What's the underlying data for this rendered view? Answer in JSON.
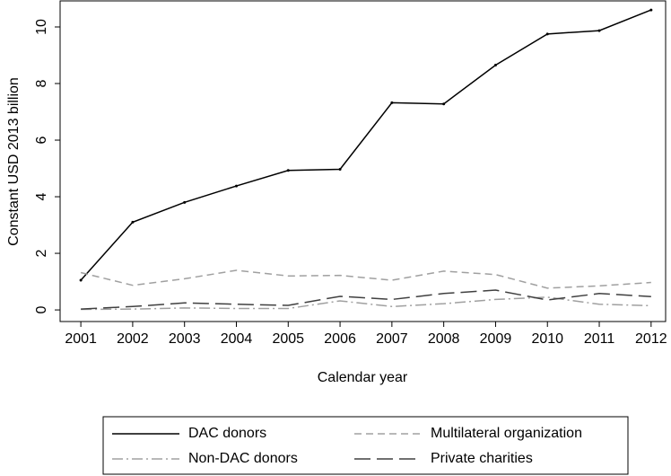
{
  "chart_data": {
    "type": "line",
    "x_label": "Calendar year",
    "y_label": "Constant USD 2013 billion",
    "x": [
      2001,
      2002,
      2003,
      2004,
      2005,
      2006,
      2007,
      2008,
      2009,
      2010,
      2011,
      2012
    ],
    "series": [
      {
        "name": "DAC donors",
        "color": "#000000",
        "values": [
          1.05,
          3.1,
          3.8,
          4.38,
          4.93,
          4.97,
          7.32,
          7.28,
          8.65,
          9.75,
          9.87,
          10.6
        ]
      },
      {
        "name": "Multilateral organization",
        "color": "#a0a0a0",
        "values": [
          1.32,
          0.87,
          1.1,
          1.4,
          1.2,
          1.22,
          1.05,
          1.37,
          1.25,
          0.77,
          0.85,
          0.97
        ]
      },
      {
        "name": "Non-DAC donors",
        "color": "#a0a0a0",
        "values": [
          0.02,
          0.03,
          0.07,
          0.05,
          0.05,
          0.32,
          0.12,
          0.22,
          0.37,
          0.45,
          0.2,
          0.15
        ]
      },
      {
        "name": "Private charities",
        "color": "#404040",
        "values": [
          0.03,
          0.12,
          0.25,
          0.2,
          0.16,
          0.48,
          0.37,
          0.58,
          0.7,
          0.35,
          0.58,
          0.47
        ]
      }
    ],
    "xlim": [
      2000.6,
      2012.28
    ],
    "xticks": [
      2001,
      2002,
      2003,
      2004,
      2005,
      2006,
      2007,
      2008,
      2009,
      2010,
      2011,
      2012
    ],
    "ylim": [
      -0.41,
      10.92
    ],
    "yticks": [
      0,
      2,
      4,
      6,
      8,
      10
    ],
    "legend": "bottom"
  }
}
